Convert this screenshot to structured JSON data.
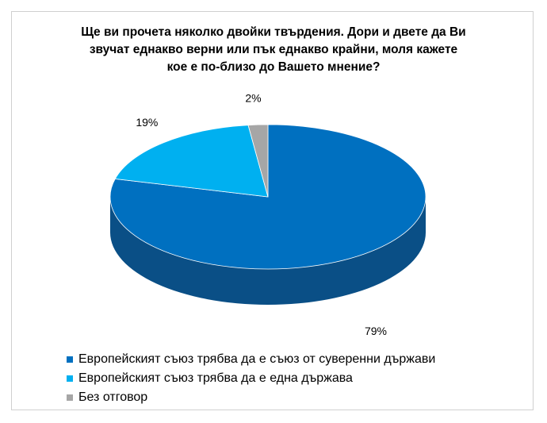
{
  "chart_data": {
    "type": "pie",
    "title_lines": [
      "Ще ви прочета няколко двойки твърдения. Дори и двете да Ви",
      "звучат еднакво верни или пък еднакво крайни, моля кажете",
      "кое е по-близо до Вашето мнение?"
    ],
    "slices": [
      {
        "label": "Европейският съюз трябва да е съюз от суверенни държави",
        "value": 79,
        "display": "79%",
        "color": "#0070C0",
        "side_color": "#0A4F86"
      },
      {
        "label": "Европейският съюз трябва да е една държава",
        "value": 19,
        "display": "19%",
        "color": "#00B0F0",
        "side_color": "#0088BA"
      },
      {
        "label": "Без отговор",
        "value": 2,
        "display": "2%",
        "color": "#A6A6A6",
        "side_color": "#808080"
      }
    ],
    "three_d": true,
    "legend_position": "bottom-left"
  }
}
